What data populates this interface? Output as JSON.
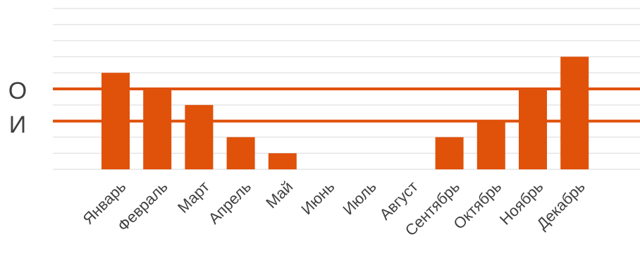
{
  "side_labels": {
    "upper": "О",
    "lower": "И"
  },
  "colors": {
    "bar": "#e0510a",
    "reference_line": "#e0510a",
    "grid": "#e6e6e6",
    "tick_label": "#404040"
  },
  "chart_data": {
    "type": "bar",
    "title": "",
    "xlabel": "",
    "ylabel": "",
    "categories": [
      "Январь",
      "Февраль",
      "Март",
      "Апрель",
      "Май",
      "Июнь",
      "Июль",
      "Август",
      "Сентябрь",
      "Октябрь",
      "Ноябрь",
      "Декабрь"
    ],
    "values": [
      6,
      5,
      4,
      2,
      1,
      0,
      0,
      0,
      2,
      3,
      5,
      7
    ],
    "ylim": [
      0,
      10
    ],
    "grid": true,
    "y_ticks_shown": false,
    "reference_lines": [
      {
        "label": "О",
        "value": 5
      },
      {
        "label": "И",
        "value": 3
      }
    ]
  }
}
